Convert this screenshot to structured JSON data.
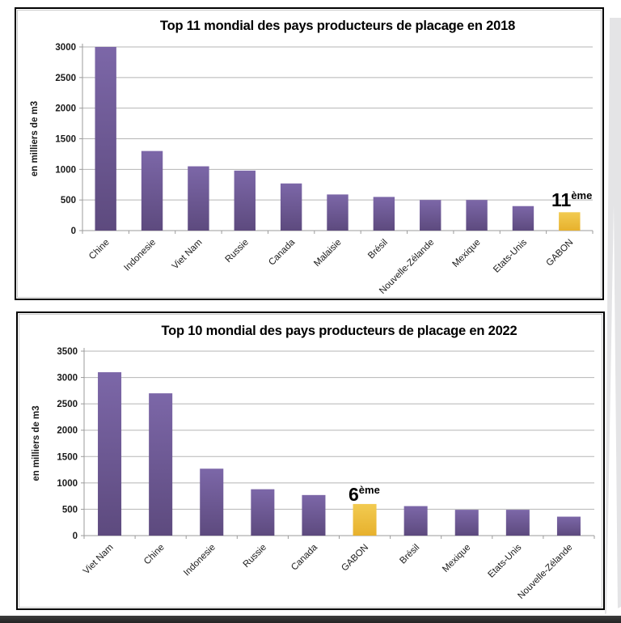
{
  "page": {
    "background": "#ffffff",
    "bottom_band_color": "#242424",
    "curl_color": "#e4e4e6",
    "frame_color": "#000000",
    "gridline_color": "#b5b5b5",
    "axis_color": "#9b9b9b"
  },
  "chart_data": [
    {
      "type": "bar",
      "title": "Top 11 mondial des pays producteurs de placage en 2018",
      "ylabel": "en milliers de m3",
      "xlabel": "",
      "ylim": [
        0,
        3000
      ],
      "ystep": 500,
      "grid": true,
      "legend": "none",
      "categories": [
        "Chine",
        "Indonesie",
        "Viet Nam",
        "Russie",
        "Canada",
        "Malaisie",
        "Brésil",
        "Nouvelle-Zélande",
        "Mexique",
        "Etats-Unis",
        "GABON"
      ],
      "values": [
        3000,
        1300,
        1050,
        980,
        770,
        590,
        550,
        500,
        500,
        400,
        300
      ],
      "bar_color": "#6b5596",
      "bar_gradient": [
        "#7c67a8",
        "#5d4a7e"
      ],
      "highlight_category": "GABON",
      "highlight_color": "#edc13f",
      "highlight_gradient": [
        "#f2cb51",
        "#e7b12d"
      ],
      "annotation": {
        "rank": "11",
        "suffix": "ème",
        "target": "GABON"
      }
    },
    {
      "type": "bar",
      "title": "Top 10 mondial des pays producteurs de placage en 2022",
      "ylabel": "en milliers de m3",
      "xlabel": "",
      "ylim": [
        0,
        3500
      ],
      "ystep": 500,
      "grid": true,
      "legend": "none",
      "categories": [
        "Viet Nam",
        "Chine",
        "Indonesie",
        "Russie",
        "Canada",
        "GABON",
        "Brésil",
        "Mexique",
        "Etats-Unis",
        "Nouvelle-Zélande"
      ],
      "values": [
        3100,
        2700,
        1270,
        880,
        770,
        600,
        560,
        490,
        490,
        360
      ],
      "bar_color": "#6b5596",
      "bar_gradient": [
        "#7c67a8",
        "#5d4a7e"
      ],
      "highlight_category": "GABON",
      "highlight_color": "#edc13f",
      "highlight_gradient": [
        "#f2cb51",
        "#e7b12d"
      ],
      "annotation": {
        "rank": "6",
        "suffix": "ème",
        "target": "GABON"
      }
    }
  ]
}
